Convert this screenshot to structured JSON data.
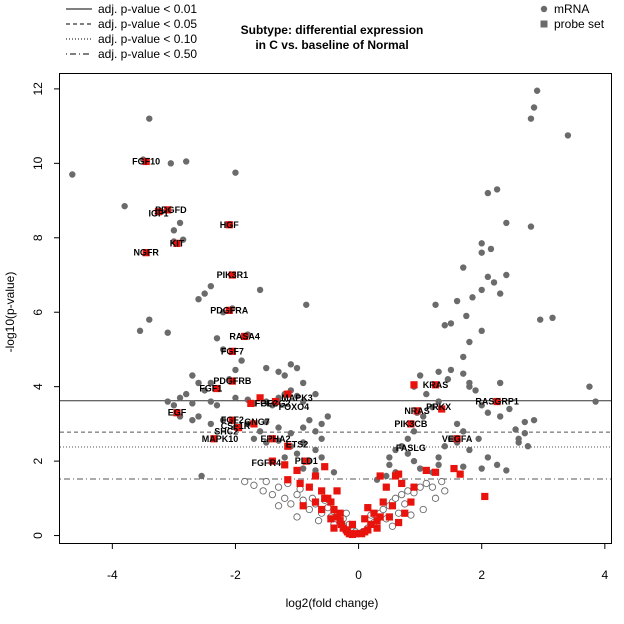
{
  "chart_data": {
    "type": "scatter",
    "title": [
      "Subtype: differential expression",
      "in C vs. baseline of Normal"
    ],
    "xlabel": "log2(fold change)",
    "ylabel": "-log10(p-value)",
    "xlim": [
      -4.85,
      4.1
    ],
    "ylim": [
      -0.2,
      12.4
    ],
    "xticks": [
      -4,
      -2,
      0,
      2,
      4
    ],
    "yticks": [
      0,
      2,
      4,
      6,
      8,
      10,
      12
    ],
    "thresholds": [
      {
        "label": "adj. p-value < 0.01",
        "y": 3.62,
        "style": "solid"
      },
      {
        "label": "adj. p-value < 0.05",
        "y": 2.78,
        "style": "dashed"
      },
      {
        "label": "adj. p-value < 0.10",
        "y": 2.38,
        "style": "dotted"
      },
      {
        "label": "adj. p-value < 0.50",
        "y": 1.52,
        "style": "dotdash"
      }
    ],
    "series": [
      {
        "name": "mRNA",
        "marker": "circle",
        "color": "#6b6b6b"
      },
      {
        "name": "probe set",
        "marker": "square",
        "color": "#e8130c"
      }
    ],
    "mrna_points": [
      [
        -4.65,
        9.7
      ],
      [
        -3.8,
        8.85
      ],
      [
        -3.5,
        10.1
      ],
      [
        -3.05,
        10.0
      ],
      [
        -2.8,
        10.05
      ],
      [
        -2.0,
        9.75
      ],
      [
        -3.2,
        8.7
      ],
      [
        -3.0,
        8.2
      ],
      [
        -3.0,
        7.9
      ],
      [
        -2.9,
        8.4
      ],
      [
        -2.85,
        7.95
      ],
      [
        -3.4,
        11.2
      ],
      [
        -3.55,
        5.5
      ],
      [
        -3.4,
        5.8
      ],
      [
        -3.1,
        5.45
      ],
      [
        -2.6,
        6.35
      ],
      [
        -2.5,
        6.5
      ],
      [
        -2.4,
        6.7
      ],
      [
        -2.2,
        6.0
      ],
      [
        -2.05,
        6.1
      ],
      [
        -1.6,
        6.6
      ],
      [
        -2.3,
        5.3
      ],
      [
        -2.2,
        5.0
      ],
      [
        -1.8,
        5.4
      ],
      [
        -1.9,
        4.7
      ],
      [
        -2.0,
        4.45
      ],
      [
        -2.1,
        4.2
      ],
      [
        -2.4,
        4.1
      ],
      [
        -2.6,
        4.1
      ],
      [
        -2.7,
        4.3
      ],
      [
        -2.5,
        3.9
      ],
      [
        -2.8,
        3.8
      ],
      [
        -2.9,
        3.7
      ],
      [
        -3.1,
        3.6
      ],
      [
        -3.0,
        3.5
      ],
      [
        -2.7,
        3.55
      ],
      [
        -2.4,
        3.6
      ],
      [
        -2.3,
        3.5
      ],
      [
        -2.0,
        3.7
      ],
      [
        -1.8,
        3.65
      ],
      [
        -1.7,
        3.55
      ],
      [
        -1.5,
        3.6
      ],
      [
        -1.4,
        3.5
      ],
      [
        -1.3,
        3.7
      ],
      [
        -1.2,
        3.8
      ],
      [
        -1.1,
        3.9
      ],
      [
        -1.0,
        3.75
      ],
      [
        -0.9,
        3.6
      ],
      [
        -1.5,
        4.5
      ],
      [
        -1.3,
        4.4
      ],
      [
        -1.1,
        4.6
      ],
      [
        -1.2,
        4.3
      ],
      [
        -1.0,
        4.5
      ],
      [
        -0.9,
        4.1
      ],
      [
        -0.7,
        3.8
      ],
      [
        -0.85,
        6.2
      ],
      [
        -2.9,
        3.2
      ],
      [
        -2.7,
        3.1
      ],
      [
        -2.6,
        3.2
      ],
      [
        -2.4,
        3.0
      ],
      [
        -2.2,
        3.1
      ],
      [
        -2.0,
        2.9
      ],
      [
        -1.8,
        3.0
      ],
      [
        -1.6,
        2.8
      ],
      [
        -1.5,
        3.05
      ],
      [
        -1.3,
        2.9
      ],
      [
        -1.1,
        2.75
      ],
      [
        -0.9,
        2.9
      ],
      [
        -0.8,
        3.1
      ],
      [
        -0.7,
        2.8
      ],
      [
        -0.6,
        3.0
      ],
      [
        -0.5,
        3.2
      ],
      [
        -1.7,
        2.6
      ],
      [
        -1.5,
        2.5
      ],
      [
        -1.3,
        2.55
      ],
      [
        -1.1,
        2.4
      ],
      [
        -0.9,
        2.5
      ],
      [
        -0.7,
        2.3
      ],
      [
        -0.6,
        2.6
      ],
      [
        -1.0,
        2.2
      ],
      [
        -1.2,
        2.1
      ],
      [
        -0.8,
        2.0
      ],
      [
        -0.6,
        2.1
      ],
      [
        -0.9,
        1.8
      ],
      [
        -0.7,
        1.75
      ],
      [
        -0.4,
        1.7
      ],
      [
        -2.55,
        1.6
      ],
      [
        0.95,
        3.3
      ],
      [
        1.05,
        3.2
      ],
      [
        1.2,
        3.45
      ],
      [
        1.3,
        3.6
      ],
      [
        1.1,
        3.8
      ],
      [
        0.9,
        4.0
      ],
      [
        1.0,
        4.3
      ],
      [
        1.3,
        4.4
      ],
      [
        1.45,
        4.2
      ],
      [
        1.5,
        4.45
      ],
      [
        1.7,
        4.35
      ],
      [
        1.8,
        4.1
      ],
      [
        1.9,
        3.9
      ],
      [
        2.0,
        3.5
      ],
      [
        2.1,
        3.3
      ],
      [
        2.3,
        3.2
      ],
      [
        2.45,
        3.4
      ],
      [
        1.6,
        3.0
      ],
      [
        1.7,
        2.8
      ],
      [
        1.5,
        2.6
      ],
      [
        1.4,
        2.4
      ],
      [
        1.6,
        2.5
      ],
      [
        1.8,
        2.3
      ],
      [
        1.95,
        2.6
      ],
      [
        2.1,
        2.1
      ],
      [
        1.3,
        2.1
      ],
      [
        0.9,
        2.8
      ],
      [
        0.8,
        2.6
      ],
      [
        0.7,
        2.4
      ],
      [
        0.8,
        2.2
      ],
      [
        0.9,
        2.0
      ],
      [
        0.6,
        2.3
      ],
      [
        0.5,
        2.1
      ],
      [
        0.5,
        1.9
      ],
      [
        0.6,
        1.7
      ],
      [
        0.45,
        1.6
      ],
      [
        0.3,
        1.5
      ],
      [
        1.0,
        1.8
      ],
      [
        1.2,
        1.7
      ],
      [
        1.3,
        1.9
      ],
      [
        1.7,
        1.85
      ],
      [
        2.0,
        1.8
      ],
      [
        2.25,
        1.9
      ],
      [
        2.4,
        1.75
      ],
      [
        2.75,
        2.4
      ],
      [
        2.6,
        2.6
      ],
      [
        2.55,
        2.85
      ],
      [
        2.7,
        3.05
      ],
      [
        1.25,
        6.2
      ],
      [
        1.4,
        5.65
      ],
      [
        1.5,
        5.7
      ],
      [
        1.6,
        6.3
      ],
      [
        1.75,
        5.9
      ],
      [
        1.85,
        6.4
      ],
      [
        2.0,
        6.6
      ],
      [
        2.1,
        6.95
      ],
      [
        2.3,
        6.5
      ],
      [
        2.15,
        7.7
      ],
      [
        2.25,
        9.3
      ],
      [
        2.4,
        8.4
      ],
      [
        2.1,
        9.2
      ],
      [
        2.0,
        7.6
      ],
      [
        1.7,
        7.2
      ],
      [
        1.8,
        5.2
      ],
      [
        1.7,
        4.8
      ],
      [
        2.0,
        5.5
      ],
      [
        2.8,
        8.3
      ],
      [
        2.9,
        11.95
      ],
      [
        2.85,
        11.5
      ],
      [
        2.8,
        11.2
      ],
      [
        3.4,
        10.75
      ],
      [
        3.15,
        5.85
      ],
      [
        2.95,
        5.8
      ],
      [
        2.4,
        7.0
      ],
      [
        2.0,
        7.85
      ],
      [
        2.2,
        6.8
      ],
      [
        2.3,
        4.1
      ],
      [
        1.8,
        4.0
      ],
      [
        3.75,
        4.0
      ],
      [
        3.85,
        3.6
      ],
      [
        2.85,
        3.1
      ],
      [
        2.6,
        2.5
      ],
      [
        2.7,
        2.75
      ]
    ],
    "open_points": [
      [
        -1.7,
        1.35
      ],
      [
        -1.55,
        1.2
      ],
      [
        -1.4,
        1.1
      ],
      [
        -1.3,
        1.3
      ],
      [
        -1.2,
        1.0
      ],
      [
        -1.1,
        0.85
      ],
      [
        -1.0,
        1.1
      ],
      [
        -0.9,
        0.95
      ],
      [
        -0.8,
        0.7
      ],
      [
        -0.7,
        0.85
      ],
      [
        -0.6,
        0.6
      ],
      [
        -0.5,
        0.75
      ],
      [
        -0.45,
        0.5
      ],
      [
        -0.35,
        0.55
      ],
      [
        -0.3,
        0.35
      ],
      [
        -0.25,
        0.45
      ],
      [
        -0.2,
        0.25
      ],
      [
        -0.15,
        0.3
      ],
      [
        -0.1,
        0.12
      ],
      [
        -0.05,
        0.1
      ],
      [
        0.0,
        0.05
      ],
      [
        0.05,
        0.08
      ],
      [
        0.1,
        0.12
      ],
      [
        0.15,
        0.2
      ],
      [
        0.2,
        0.3
      ],
      [
        0.25,
        0.35
      ],
      [
        0.3,
        0.5
      ],
      [
        0.35,
        0.6
      ],
      [
        0.4,
        0.7
      ],
      [
        0.5,
        0.8
      ],
      [
        0.55,
        0.9
      ],
      [
        0.6,
        1.0
      ],
      [
        0.7,
        1.1
      ],
      [
        0.8,
        1.2
      ],
      [
        0.9,
        1.15
      ],
      [
        1.0,
        1.3
      ],
      [
        1.1,
        1.4
      ],
      [
        1.2,
        1.3
      ],
      [
        1.35,
        1.45
      ],
      [
        -1.85,
        1.45
      ],
      [
        -1.5,
        1.45
      ],
      [
        -1.15,
        1.4
      ],
      [
        -0.95,
        1.25
      ],
      [
        -0.75,
        1.0
      ],
      [
        -0.55,
        0.95
      ],
      [
        -0.65,
        0.4
      ],
      [
        -0.4,
        0.3
      ],
      [
        0.45,
        0.45
      ],
      [
        0.65,
        0.6
      ],
      [
        0.75,
        0.85
      ],
      [
        0.85,
        0.55
      ],
      [
        1.25,
        1.0
      ],
      [
        1.4,
        1.2
      ],
      [
        -1.0,
        0.5
      ],
      [
        -1.3,
        0.8
      ],
      [
        1.05,
        0.7
      ],
      [
        0.2,
        0.55
      ],
      [
        -0.2,
        0.6
      ],
      [
        0.55,
        0.25
      ]
    ],
    "probe_points": [
      [
        -3.45,
        10.05
      ],
      [
        -3.1,
        8.75
      ],
      [
        -3.25,
        8.7
      ],
      [
        -2.95,
        7.85
      ],
      [
        -3.45,
        7.6
      ],
      [
        -2.1,
        8.35
      ],
      [
        -2.05,
        7.0
      ],
      [
        -2.1,
        6.05
      ],
      [
        -1.85,
        5.35
      ],
      [
        -2.05,
        4.95
      ],
      [
        -2.05,
        4.15
      ],
      [
        -2.3,
        3.95
      ],
      [
        -2.95,
        3.3
      ],
      [
        -1.75,
        3.55
      ],
      [
        -1.6,
        3.7
      ],
      [
        -1.15,
        3.8
      ],
      [
        -1.35,
        3.6
      ],
      [
        -2.05,
        3.1
      ],
      [
        -1.95,
        2.9
      ],
      [
        -1.7,
        3.0
      ],
      [
        -2.35,
        2.6
      ],
      [
        -1.4,
        2.6
      ],
      [
        -1.15,
        2.4
      ],
      [
        -1.4,
        2.0
      ],
      [
        -0.85,
        2.0
      ],
      [
        -1.2,
        1.9
      ],
      [
        -1.0,
        1.75
      ],
      [
        -1.15,
        1.5
      ],
      [
        -0.95,
        1.4
      ],
      [
        -0.8,
        1.3
      ],
      [
        -0.6,
        1.2
      ],
      [
        -0.55,
        1.0
      ],
      [
        -0.45,
        0.9
      ],
      [
        -0.4,
        0.7
      ],
      [
        -0.35,
        0.5
      ],
      [
        -0.3,
        0.4
      ],
      [
        -0.28,
        0.3
      ],
      [
        -0.25,
        0.2
      ],
      [
        -0.2,
        0.15
      ],
      [
        -0.18,
        0.1
      ],
      [
        -0.15,
        0.05
      ],
      [
        -0.1,
        0.03
      ],
      [
        -0.05,
        0.05
      ],
      [
        0.05,
        0.05
      ],
      [
        0.1,
        0.1
      ],
      [
        0.15,
        0.15
      ],
      [
        0.2,
        0.3
      ],
      [
        0.3,
        0.4
      ],
      [
        0.35,
        0.5
      ],
      [
        0.4,
        0.9
      ],
      [
        0.45,
        1.3
      ],
      [
        0.6,
        1.6
      ],
      [
        0.7,
        1.4
      ],
      [
        0.9,
        1.3
      ],
      [
        1.1,
        1.75
      ],
      [
        1.25,
        1.7
      ],
      [
        1.55,
        1.8
      ],
      [
        1.65,
        1.65
      ],
      [
        2.05,
        1.05
      ],
      [
        1.35,
        3.4
      ],
      [
        0.95,
        3.35
      ],
      [
        0.9,
        4.05
      ],
      [
        1.25,
        4.05
      ],
      [
        0.85,
        3.0
      ],
      [
        1.6,
        2.6
      ],
      [
        2.25,
        3.6
      ],
      [
        0.35,
        1.6
      ],
      [
        0.65,
        1.65
      ],
      [
        -0.5,
        1.0
      ],
      [
        -0.7,
        0.9
      ],
      [
        -0.9,
        0.8
      ],
      [
        -0.6,
        0.7
      ],
      [
        -0.4,
        0.2
      ],
      [
        -0.3,
        0.6
      ],
      [
        0.25,
        0.6
      ],
      [
        0.5,
        0.5
      ],
      [
        0.3,
        0.2
      ],
      [
        0.55,
        0.8
      ],
      [
        0.75,
        0.6
      ],
      [
        0.85,
        0.9
      ],
      [
        -0.7,
        1.6
      ],
      [
        -0.35,
        1.2
      ],
      [
        -0.55,
        1.85
      ],
      [
        -0.45,
        0.45
      ],
      [
        0.15,
        0.75
      ],
      [
        -0.1,
        0.3
      ],
      [
        0.1,
        0.45
      ],
      [
        0.65,
        0.35
      ]
    ],
    "gene_labels": [
      {
        "text": "FGF10",
        "x": -3.45,
        "y": 10.05
      },
      {
        "text": "PDGFD",
        "x": -3.05,
        "y": 8.75
      },
      {
        "text": "IGF1",
        "x": -3.25,
        "y": 8.65
      },
      {
        "text": "KIT",
        "x": -2.95,
        "y": 7.85
      },
      {
        "text": "NGFR",
        "x": -3.45,
        "y": 7.6
      },
      {
        "text": "HGF",
        "x": -2.1,
        "y": 8.35
      },
      {
        "text": "PIK3R1",
        "x": -2.05,
        "y": 7.0
      },
      {
        "text": "PDGFRA",
        "x": -2.1,
        "y": 6.05
      },
      {
        "text": "RASA4",
        "x": -1.85,
        "y": 5.35
      },
      {
        "text": "FGF7",
        "x": -2.05,
        "y": 4.95
      },
      {
        "text": "PDGFRB",
        "x": -2.05,
        "y": 4.15
      },
      {
        "text": "FGF1",
        "x": -2.4,
        "y": 3.95
      },
      {
        "text": "MAPK3",
        "x": -1.0,
        "y": 3.7
      },
      {
        "text": "PLCG2",
        "x": -1.35,
        "y": 3.55
      },
      {
        "text": "FGF2",
        "x": -1.5,
        "y": 3.55
      },
      {
        "text": "FOXO4",
        "x": -1.05,
        "y": 3.45
      },
      {
        "text": "EGF",
        "x": -2.95,
        "y": 3.3
      },
      {
        "text": "FGF2",
        "x": -2.05,
        "y": 3.1
      },
      {
        "text": "GNG7",
        "x": -1.65,
        "y": 3.05
      },
      {
        "text": "CSF1R",
        "x": -2.0,
        "y": 2.95
      },
      {
        "text": "SHC2",
        "x": -2.15,
        "y": 2.8
      },
      {
        "text": "MAPK10",
        "x": -2.25,
        "y": 2.6
      },
      {
        "text": "EPHA2",
        "x": -1.35,
        "y": 2.6
      },
      {
        "text": "ETS2",
        "x": -1.0,
        "y": 2.45
      },
      {
        "text": "FGFR4",
        "x": -1.5,
        "y": 1.95
      },
      {
        "text": "PLD1",
        "x": -0.85,
        "y": 2.0
      },
      {
        "text": "KRAS",
        "x": 1.25,
        "y": 4.05
      },
      {
        "text": "RASGRP1",
        "x": 2.25,
        "y": 3.6
      },
      {
        "text": "PRKX",
        "x": 1.3,
        "y": 3.45
      },
      {
        "text": "NRAS",
        "x": 0.95,
        "y": 3.35
      },
      {
        "text": "PIK3CB",
        "x": 0.85,
        "y": 3.0
      },
      {
        "text": "VEGFA",
        "x": 1.6,
        "y": 2.6
      },
      {
        "text": "FASLG",
        "x": 0.85,
        "y": 2.35
      }
    ]
  }
}
